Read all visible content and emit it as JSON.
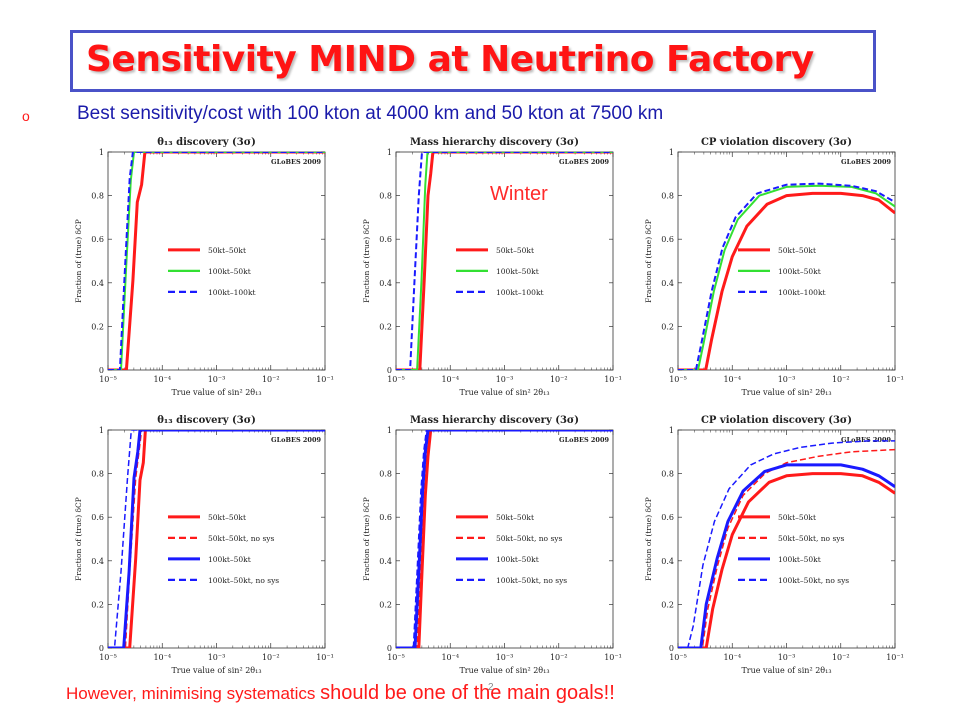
{
  "slide": {
    "title": "Sensitivity MIND at Neutrino Factory",
    "bullet_marker": "o",
    "bullet": "Best sensitivity/cost with 100 kton at 4000 km and 50 kton at 7500 km",
    "winter_label": "Winter",
    "footer_a": "However, minimising systematics ",
    "footer_b": "should be one of the main goals!!",
    "page_number": "2"
  },
  "colors": {
    "red": "#ff1a1a",
    "green": "#33e033",
    "blue": "#1a1aff",
    "title": "#ff1414",
    "box": "#4a52c8"
  },
  "axis": {
    "xlabel": "True value of sin² 2θ₁₃",
    "ylabel": "Fraction of (true) δCP",
    "x_ticks": [
      "10⁻⁵",
      "10⁻⁴",
      "10⁻³",
      "10⁻²",
      "10⁻¹"
    ],
    "y_ticks": [
      "0",
      "0.2",
      "0.4",
      "0.6",
      "0.8",
      "1"
    ],
    "globes": "GLoBES 2009"
  },
  "chart_data": [
    {
      "type": "line",
      "title": "θ₁₃ discovery (3σ)",
      "x_scale": "log",
      "xlim": [
        1e-05,
        0.1
      ],
      "ylim": [
        0,
        1
      ],
      "legend": "center",
      "series": [
        {
          "name": "50kt–50kt",
          "color": "red",
          "dash": false,
          "width": 3,
          "points": [
            [
              1e-05,
              0
            ],
            [
              2.18e-05,
              0
            ],
            [
              2.88e-05,
              0.41
            ],
            [
              3.47e-05,
              0.77
            ],
            [
              4.17e-05,
              0.85
            ],
            [
              4.79e-05,
              1
            ],
            [
              0.1,
              1
            ]
          ]
        },
        {
          "name": "100kt–50kt",
          "color": "green",
          "dash": false,
          "width": 2,
          "points": [
            [
              1e-05,
              0
            ],
            [
              1.74e-05,
              0
            ],
            [
              2.14e-05,
              0.45
            ],
            [
              2.63e-05,
              0.87
            ],
            [
              3.02e-05,
              1
            ],
            [
              0.1,
              1
            ]
          ]
        },
        {
          "name": "100kt–100kt",
          "color": "blue",
          "dash": true,
          "width": 2,
          "points": [
            [
              1e-05,
              0
            ],
            [
              1.66e-05,
              0
            ],
            [
              2.04e-05,
              0.45
            ],
            [
              2.51e-05,
              0.88
            ],
            [
              2.88e-05,
              1
            ],
            [
              0.1,
              1
            ]
          ]
        }
      ]
    },
    {
      "type": "line",
      "title": "Mass hierarchy discovery (3σ)",
      "x_scale": "log",
      "xlim": [
        1e-05,
        0.1
      ],
      "ylim": [
        0,
        1
      ],
      "legend": "center",
      "series": [
        {
          "name": "50kt–50kt",
          "color": "red",
          "dash": false,
          "width": 3,
          "points": [
            [
              1e-05,
              0
            ],
            [
              2.75e-05,
              0
            ],
            [
              3.31e-05,
              0.41
            ],
            [
              3.89e-05,
              0.8
            ],
            [
              4.37e-05,
              0.9
            ],
            [
              4.79e-05,
              1
            ],
            [
              0.1,
              1
            ]
          ]
        },
        {
          "name": "100kt–50kt",
          "color": "green",
          "dash": false,
          "width": 2,
          "points": [
            [
              1e-05,
              0
            ],
            [
              2.45e-05,
              0
            ],
            [
              2.95e-05,
              0.41
            ],
            [
              3.47e-05,
              0.85
            ],
            [
              3.8e-05,
              1
            ],
            [
              0.1,
              1
            ]
          ]
        },
        {
          "name": "100kt–100kt",
          "color": "blue",
          "dash": true,
          "width": 2,
          "points": [
            [
              1e-05,
              0
            ],
            [
              1.82e-05,
              0
            ],
            [
              2.19e-05,
              0.41
            ],
            [
              2.63e-05,
              0.8
            ],
            [
              3.02e-05,
              1
            ],
            [
              0.1,
              1
            ]
          ]
        }
      ]
    },
    {
      "type": "line",
      "title": "CP violation discovery (3σ)",
      "x_scale": "log",
      "xlim": [
        1e-05,
        0.1
      ],
      "ylim": [
        0,
        1
      ],
      "legend": "center",
      "series": [
        {
          "name": "50kt–50kt",
          "color": "red",
          "dash": false,
          "width": 3,
          "points": [
            [
              1e-05,
              0
            ],
            [
              3.24e-05,
              0
            ],
            [
              4.17e-05,
              0.14
            ],
            [
              6.46e-05,
              0.36
            ],
            [
              0.0001,
              0.52
            ],
            [
              0.0001862,
              0.66
            ],
            [
              0.0004365,
              0.76
            ],
            [
              0.001,
              0.8
            ],
            [
              0.00302,
              0.81
            ],
            [
              0.01,
              0.81
            ],
            [
              0.02512,
              0.8
            ],
            [
              0.05012,
              0.78
            ],
            [
              0.1,
              0.72
            ]
          ]
        },
        {
          "name": "100kt–50kt",
          "color": "green",
          "dash": false,
          "width": 2,
          "points": [
            [
              1e-05,
              0
            ],
            [
              2.34e-05,
              0
            ],
            [
              2.95e-05,
              0.12
            ],
            [
              4.57e-05,
              0.36
            ],
            [
              7.24e-05,
              0.55
            ],
            [
              0.0001259,
              0.69
            ],
            [
              0.0003162,
              0.8
            ],
            [
              0.001,
              0.84
            ],
            [
              0.003981,
              0.845
            ],
            [
              0.01585,
              0.84
            ],
            [
              0.04467,
              0.81
            ],
            [
              0.1,
              0.75
            ]
          ]
        },
        {
          "name": "100kt–100kt",
          "color": "blue",
          "dash": true,
          "width": 2,
          "points": [
            [
              1e-05,
              0
            ],
            [
              2.14e-05,
              0
            ],
            [
              2.69e-05,
              0.12
            ],
            [
              4.17e-05,
              0.36
            ],
            [
              6.61e-05,
              0.56
            ],
            [
              0.0001148,
              0.7
            ],
            [
              0.0002884,
              0.81
            ],
            [
              0.001,
              0.85
            ],
            [
              0.003981,
              0.855
            ],
            [
              0.01585,
              0.845
            ],
            [
              0.04467,
              0.82
            ],
            [
              0.1,
              0.77
            ]
          ]
        }
      ]
    },
    {
      "type": "line",
      "title": "θ₁₃ discovery (3σ)",
      "x_scale": "log",
      "xlim": [
        1e-05,
        0.1
      ],
      "ylim": [
        0,
        1
      ],
      "legend": "center",
      "series": [
        {
          "name": "50kt–50kt",
          "color": "red",
          "dash": false,
          "width": 3,
          "points": [
            [
              1e-05,
              0
            ],
            [
              2.51e-05,
              0
            ],
            [
              3.24e-05,
              0.41
            ],
            [
              3.89e-05,
              0.77
            ],
            [
              4.47e-05,
              0.85
            ],
            [
              4.9e-05,
              1
            ],
            [
              0.1,
              1
            ]
          ]
        },
        {
          "name": "50kt–50kt, no sys",
          "color": "red",
          "dash": true,
          "width": 1.5,
          "points": [
            [
              1e-05,
              0
            ],
            [
              2.09e-05,
              0
            ],
            [
              2.51e-05,
              0.35
            ],
            [
              3.24e-05,
              0.78
            ],
            [
              3.72e-05,
              0.9
            ],
            [
              4.17e-05,
              1
            ],
            [
              0.1,
              1
            ]
          ]
        },
        {
          "name": "100kt–50kt",
          "color": "blue",
          "dash": false,
          "width": 3,
          "points": [
            [
              1e-05,
              0
            ],
            [
              1.95e-05,
              0
            ],
            [
              2.45e-05,
              0.35
            ],
            [
              3.02e-05,
              0.78
            ],
            [
              3.55e-05,
              0.9
            ],
            [
              3.89e-05,
              1
            ],
            [
              0.1,
              1
            ]
          ]
        },
        {
          "name": "100kt–50kt, no sys",
          "color": "blue",
          "dash": true,
          "width": 1.5,
          "points": [
            [
              1e-05,
              0
            ],
            [
              1.32e-05,
              0
            ],
            [
              1.74e-05,
              0.35
            ],
            [
              2.29e-05,
              0.78
            ],
            [
              2.69e-05,
              1
            ],
            [
              0.1,
              1
            ]
          ]
        }
      ]
    },
    {
      "type": "line",
      "title": "Mass hierarchy discovery (3σ)",
      "x_scale": "log",
      "xlim": [
        1e-05,
        0.1
      ],
      "ylim": [
        0,
        1
      ],
      "legend": "center",
      "series": [
        {
          "name": "50kt–50kt",
          "color": "red",
          "dash": false,
          "width": 3,
          "points": [
            [
              1e-05,
              0
            ],
            [
              2.63e-05,
              0
            ],
            [
              3.02e-05,
              0.35
            ],
            [
              3.47e-05,
              0.7
            ],
            [
              3.89e-05,
              0.88
            ],
            [
              4.37e-05,
              1
            ],
            [
              0.1,
              1
            ]
          ]
        },
        {
          "name": "50kt–50kt, no sys",
          "color": "red",
          "dash": true,
          "width": 1.5,
          "points": [
            [
              1e-05,
              0
            ],
            [
              2.45e-05,
              0
            ],
            [
              2.82e-05,
              0.35
            ],
            [
              3.24e-05,
              0.7
            ],
            [
              3.63e-05,
              0.9
            ],
            [
              3.98e-05,
              1
            ],
            [
              0.1,
              1
            ]
          ]
        },
        {
          "name": "100kt–50kt",
          "color": "blue",
          "dash": false,
          "width": 3,
          "points": [
            [
              1e-05,
              0
            ],
            [
              2.24e-05,
              0
            ],
            [
              2.63e-05,
              0.35
            ],
            [
              3.09e-05,
              0.72
            ],
            [
              3.47e-05,
              0.9
            ],
            [
              3.89e-05,
              1
            ],
            [
              0.1,
              1
            ]
          ]
        },
        {
          "name": "100kt–50kt, no sys",
          "color": "blue",
          "dash": true,
          "width": 1.5,
          "points": [
            [
              1e-05,
              0
            ],
            [
              2.09e-05,
              0
            ],
            [
              2.45e-05,
              0.35
            ],
            [
              2.88e-05,
              0.72
            ],
            [
              3.24e-05,
              0.9
            ],
            [
              3.63e-05,
              1
            ],
            [
              0.1,
              1
            ]
          ]
        }
      ]
    },
    {
      "type": "line",
      "title": "CP violation discovery (3σ)",
      "x_scale": "log",
      "xlim": [
        1e-05,
        0.1
      ],
      "ylim": [
        0,
        1
      ],
      "legend": "center",
      "series": [
        {
          "name": "50kt–50kt",
          "color": "red",
          "dash": false,
          "width": 3,
          "points": [
            [
              1e-05,
              0
            ],
            [
              3.31e-05,
              0
            ],
            [
              4.37e-05,
              0.18
            ],
            [
              6.46e-05,
              0.36
            ],
            [
              0.0001,
              0.52
            ],
            [
              0.0001995,
              0.67
            ],
            [
              0.0004786,
              0.76
            ],
            [
              0.001,
              0.79
            ],
            [
              0.00302,
              0.8
            ],
            [
              0.01,
              0.8
            ],
            [
              0.02512,
              0.79
            ],
            [
              0.05012,
              0.76
            ],
            [
              0.1,
              0.71
            ]
          ]
        },
        {
          "name": "50kt–50kt, no sys",
          "color": "red",
          "dash": true,
          "width": 1.5,
          "points": [
            [
              1e-05,
              0
            ],
            [
              2.82e-05,
              0
            ],
            [
              3.55e-05,
              0.18
            ],
            [
              5.25e-05,
              0.37
            ],
            [
              8.32e-05,
              0.55
            ],
            [
              0.0001585,
              0.7
            ],
            [
              0.0003981,
              0.8
            ],
            [
              0.001,
              0.85
            ],
            [
              0.003981,
              0.88
            ],
            [
              0.01585,
              0.9
            ],
            [
              0.1,
              0.91
            ]
          ]
        },
        {
          "name": "100kt–50kt",
          "color": "blue",
          "dash": false,
          "width": 3,
          "points": [
            [
              1e-05,
              0
            ],
            [
              2.63e-05,
              0
            ],
            [
              3.31e-05,
              0.2
            ],
            [
              5.25e-05,
              0.41
            ],
            [
              8.32e-05,
              0.58
            ],
            [
              0.0001585,
              0.72
            ],
            [
              0.0003981,
              0.81
            ],
            [
              0.001,
              0.84
            ],
            [
              0.00302,
              0.84
            ],
            [
              0.01,
              0.84
            ],
            [
              0.02512,
              0.82
            ],
            [
              0.05012,
              0.79
            ],
            [
              0.1,
              0.74
            ]
          ]
        },
        {
          "name": "100kt–50kt, no sys",
          "color": "blue",
          "dash": true,
          "width": 1.5,
          "points": [
            [
              1e-05,
              0
            ],
            [
              1.51e-05,
              0
            ],
            [
              1.91e-05,
              0.1
            ],
            [
              2.88e-05,
              0.38
            ],
            [
              4.68e-05,
              0.58
            ],
            [
              8.71e-05,
              0.73
            ],
            [
              0.0002188,
              0.84
            ],
            [
              0.0005754,
              0.89
            ],
            [
              0.001778,
              0.92
            ],
            [
              0.006918,
              0.94
            ],
            [
              0.03162,
              0.95
            ],
            [
              0.1,
              0.95
            ]
          ]
        }
      ]
    }
  ]
}
